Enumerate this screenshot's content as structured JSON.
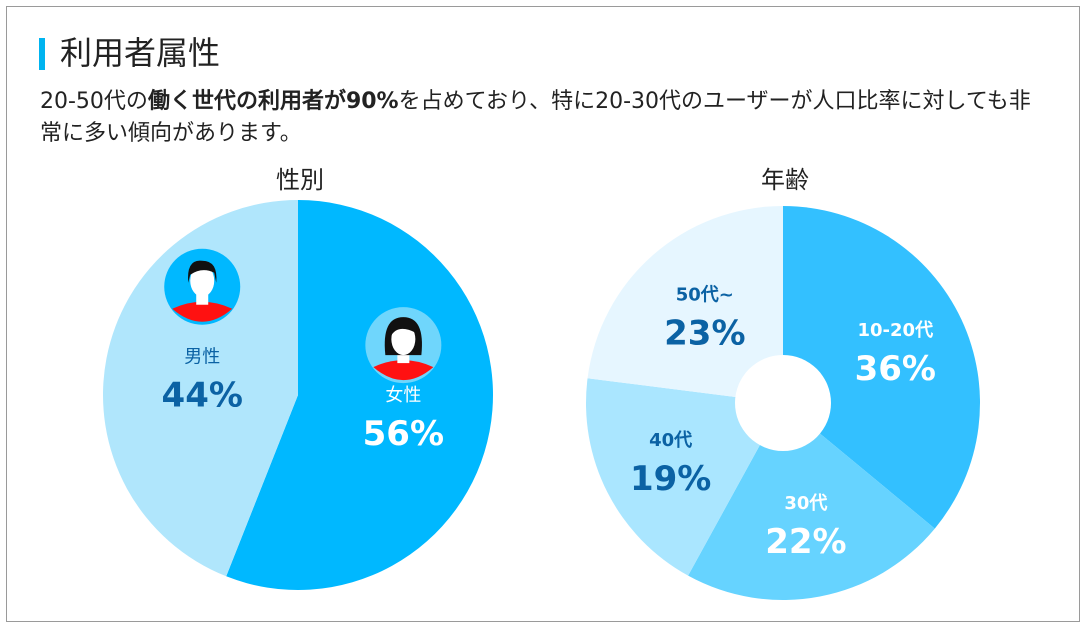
{
  "title": "利用者属性",
  "description": {
    "part1": "20-50代の",
    "bold": "働く世代の利用者が90%",
    "part2": "を占めており、特に20-30代のユーザーが人口比率に対しても非常に多い傾向があります。"
  },
  "chart_data": [
    {
      "type": "pie",
      "title": "性別",
      "slices": [
        {
          "label": "女性",
          "value": 56,
          "display": "56%",
          "color": "#00b8ff",
          "text_color": "#ffffff",
          "icon": "female-avatar-icon"
        },
        {
          "label": "男性",
          "value": 44,
          "display": "44%",
          "color": "#b0e6fc",
          "text_color": "#0b62a4",
          "icon": "male-avatar-icon"
        }
      ]
    },
    {
      "type": "pie",
      "title": "年齢",
      "donut": true,
      "slices": [
        {
          "label": "10-20代",
          "value": 36,
          "display": "36%",
          "color": "#33c0ff",
          "text_color": "#ffffff"
        },
        {
          "label": "30代",
          "value": 22,
          "display": "22%",
          "color": "#66d3ff",
          "text_color": "#ffffff"
        },
        {
          "label": "40代",
          "value": 19,
          "display": "19%",
          "color": "#aae6ff",
          "text_color": "#0b62a4"
        },
        {
          "label": "50代~",
          "value": 23,
          "display": "23%",
          "color": "#e6f6ff",
          "text_color": "#0b62a4"
        }
      ]
    }
  ]
}
